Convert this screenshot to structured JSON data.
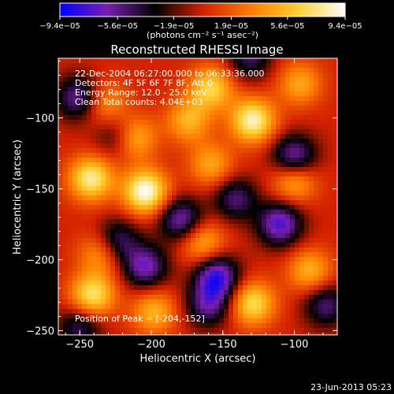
{
  "chart_data": {
    "type": "heatmap",
    "title": "Reconstructed RHESSI Image",
    "xlabel": "Heliocentric X (arcsec)",
    "ylabel": "Heliocentric Y (arcsec)",
    "xlim": [
      -265,
      -70
    ],
    "ylim": [
      -253,
      -58
    ],
    "x_ticks": [
      -250,
      -200,
      -150,
      -100
    ],
    "y_ticks": [
      -100,
      -150,
      -200,
      -250
    ],
    "x_tick_labels": [
      "−250",
      "−200",
      "−150",
      "−100"
    ],
    "y_tick_labels": [
      "−100",
      "−150",
      "−200",
      "−250"
    ],
    "colorbar": {
      "ticks": [
        -9.4e-05,
        -5.6e-05,
        -1.9e-05,
        1.9e-05,
        5.6e-05,
        9.4e-05
      ],
      "tick_labels": [
        "−9.4e−05",
        "−5.6e−05",
        "−1.9e−05",
        "1.9e−05",
        "5.6e−05",
        "9.4e−05"
      ],
      "unit_label": "(photons cm⁻² s⁻¹ asec⁻²)",
      "range": [
        -9.4e-05,
        9.4e-05
      ],
      "colormap": [
        "#0000ff",
        "#7a1fb0",
        "#000000",
        "#d22000",
        "#ff7a00",
        "#ffd030",
        "#ffffff"
      ]
    },
    "annotations": [
      "22-Dec-2004 06:27:00.000 to 06:33:36.000",
      "Detectors: 4F 5F 6F 7F 8F, Att 0",
      "Energy Range: 12.0 - 25.0 keV",
      "Clean    Total counts: 4.04E+03"
    ],
    "peak_label": "Position of Peak = [-204,-152]",
    "peak": [
      -204,
      -152
    ],
    "sources": [
      {
        "x": -204,
        "y": -152,
        "amp": 1.0
      },
      {
        "x": -242,
        "y": -143,
        "amp": 0.85
      },
      {
        "x": -129,
        "y": -102,
        "amp": 0.9
      },
      {
        "x": -158,
        "y": -79,
        "amp": 0.7
      },
      {
        "x": -213,
        "y": -114,
        "amp": 0.75
      },
      {
        "x": -174,
        "y": -102,
        "amp": 0.55
      },
      {
        "x": -241,
        "y": -225,
        "amp": 0.8
      },
      {
        "x": -129,
        "y": -231,
        "amp": 0.75
      },
      {
        "x": -100,
        "y": -144,
        "amp": 0.6
      },
      {
        "x": -164,
        "y": -188,
        "amp": 0.55
      },
      {
        "x": -89,
        "y": -208,
        "amp": 0.55
      },
      {
        "x": -198,
        "y": -237,
        "amp": 0.55
      },
      {
        "x": -235,
        "y": -195,
        "amp": 0.5
      },
      {
        "x": -158,
        "y": -133,
        "amp": 0.5
      },
      {
        "x": -96,
        "y": -76,
        "amp": 0.5
      },
      {
        "x": -232,
        "y": -90,
        "amp": 0.45
      },
      {
        "x": -110,
        "y": -175,
        "amp": -0.8
      },
      {
        "x": -154,
        "y": -212,
        "amp": -0.85
      },
      {
        "x": -100,
        "y": -128,
        "amp": -0.75
      },
      {
        "x": -179,
        "y": -172,
        "amp": -0.7
      },
      {
        "x": -204,
        "y": -205,
        "amp": -0.7
      },
      {
        "x": -224,
        "y": -187,
        "amp": -0.6
      },
      {
        "x": -251,
        "y": -86,
        "amp": -0.65
      },
      {
        "x": -160,
        "y": -232,
        "amp": -0.6
      },
      {
        "x": -222,
        "y": -113,
        "amp": -0.55
      },
      {
        "x": -141,
        "y": -157,
        "amp": -0.55
      },
      {
        "x": -131,
        "y": -58,
        "amp": -0.5
      },
      {
        "x": -78,
        "y": -232,
        "amp": -0.55
      },
      {
        "x": -250,
        "y": -248,
        "amp": -0.5
      }
    ]
  },
  "footer": {
    "timestamp": "23-Jun-2013 05:23"
  }
}
